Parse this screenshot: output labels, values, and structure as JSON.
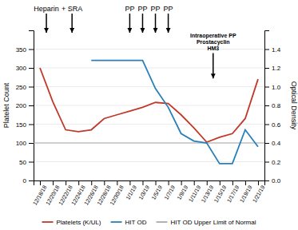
{
  "chart_data": {
    "type": "line",
    "categories": [
      "12/18/18",
      "12/20/18",
      "12/22/18",
      "12/24/18",
      "12/26/18",
      "12/28/18",
      "12/30/18",
      "1/1/19",
      "1/3/19",
      "1/5/19",
      "1/7/19",
      "1/9/19",
      "1/11/19",
      "1/13/19",
      "1/15/19",
      "1/17/19",
      "1/19/19",
      "1/21/19"
    ],
    "series": [
      {
        "name": "Platelets (K/UL)",
        "color": "#c0392b",
        "values": [
          300,
          210,
          135,
          130,
          135,
          165,
          175,
          185,
          195,
          208,
          205,
          175,
          140,
          102,
          115,
          125,
          165,
          270
        ]
      },
      {
        "name": "HIT OD",
        "color": "#2980b9",
        "axis": "y2",
        "values": [
          null,
          null,
          null,
          null,
          1.28,
          1.28,
          1.28,
          1.28,
          1.28,
          0.98,
          0.78,
          0.5,
          0.42,
          0.4,
          0.18,
          0.18,
          0.54,
          0.36
        ]
      }
    ],
    "hlines": [
      {
        "name": "HIT OD Upper Limit of Normal",
        "value": 0.4,
        "axis": "y2",
        "color": "#aaaaaa"
      }
    ],
    "ylabel": "Platelet Count",
    "y2label": "Optical Density",
    "ylim": [
      0,
      400
    ],
    "yticks": [
      0,
      50,
      100,
      150,
      200,
      250,
      300,
      350
    ],
    "y2lim": [
      0,
      1.6
    ],
    "y2ticks": [
      {
        "value": 0,
        "label": "0.0"
      },
      0.2,
      0.4,
      0.6,
      0.8,
      {
        "value": 1.0,
        "label": "1.0"
      },
      1.2,
      1.4
    ],
    "grid": true,
    "legend": "bottom",
    "annotations": [
      {
        "text": "Heparin",
        "x": 0.5
      },
      {
        "text": "+ SRA",
        "x": 2.5
      },
      {
        "text": "PP",
        "x": 7.0
      },
      {
        "text": "PP",
        "x": 8.0
      },
      {
        "text": "PP",
        "x": 9.0
      },
      {
        "text": "PP",
        "x": 10.0
      },
      {
        "text": "Intraoperative PP\nProstacyclin\nHM3",
        "x": 13.5,
        "y": 272
      }
    ]
  }
}
